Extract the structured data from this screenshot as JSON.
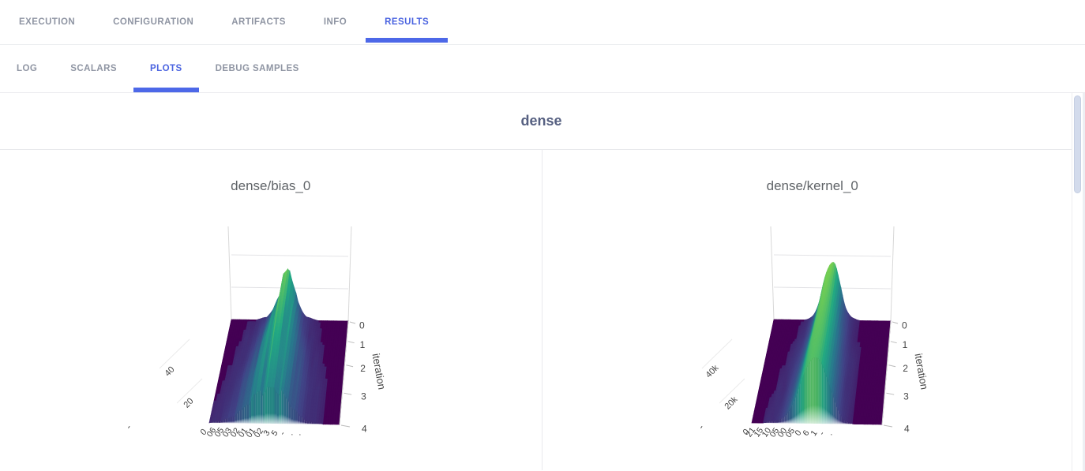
{
  "nav": {
    "tabs": [
      {
        "label": "EXECUTION",
        "active": false
      },
      {
        "label": "CONFIGURATION",
        "active": false
      },
      {
        "label": "ARTIFACTS",
        "active": false
      },
      {
        "label": "INFO",
        "active": false
      },
      {
        "label": "RESULTS",
        "active": true
      }
    ]
  },
  "subnav": {
    "tabs": [
      {
        "label": "LOG",
        "active": false
      },
      {
        "label": "SCALARS",
        "active": false
      },
      {
        "label": "PLOTS",
        "active": true
      },
      {
        "label": "DEBUG SAMPLES",
        "active": false
      }
    ]
  },
  "group_title": "dense",
  "colors": {
    "accent": "#4a63e0",
    "tab_inactive": "#8f95a3",
    "group_title_text": "#566081",
    "plot_title_text": "#606468",
    "divider": "#e8e9ec",
    "scroll_thumb": "#d3dbec",
    "surface_floor": "#440154",
    "surface_peak": "#fde725"
  },
  "chart_data": [
    {
      "type": "surface",
      "title": "dense/bias_0",
      "colorscale": "viridis",
      "surface_style": "jagged",
      "y_axis": {
        "label": "iteration",
        "ticks": [
          "0",
          "1",
          "2",
          "3",
          "4"
        ]
      },
      "z_axis": {
        "ticks": [
          "0",
          "20",
          "40"
        ],
        "range": [
          0,
          45
        ]
      },
      "x_axis": {
        "clipped": true,
        "tick_fragments": [
          "06",
          "05",
          "03",
          "02",
          "01",
          "01",
          "02",
          "3",
          "5",
          "-",
          ".",
          "."
        ]
      },
      "z_display_max": 36,
      "z_values": [
        [
          0,
          0,
          0,
          0,
          0,
          0,
          1,
          2,
          5,
          12,
          24,
          31,
          27,
          12,
          5,
          2,
          1,
          0,
          0,
          0,
          0,
          0,
          0,
          0
        ],
        [
          0,
          0,
          0,
          0,
          1,
          1,
          2,
          5,
          9,
          17,
          26,
          29,
          25,
          16,
          8,
          3,
          1,
          1,
          0,
          0,
          0,
          0,
          0,
          0
        ],
        [
          0,
          0,
          0,
          1,
          1,
          2,
          4,
          8,
          13,
          19,
          23,
          25,
          22,
          17,
          11,
          6,
          3,
          1,
          1,
          0,
          0,
          0,
          0,
          0
        ],
        [
          0,
          0,
          1,
          1,
          2,
          4,
          6,
          10,
          14,
          18,
          20,
          21,
          19,
          16,
          11,
          7,
          4,
          2,
          1,
          1,
          0,
          0,
          0,
          0
        ],
        [
          0,
          1,
          1,
          2,
          3,
          5,
          7,
          10,
          13,
          15,
          16,
          17,
          16,
          14,
          10,
          7,
          4,
          2,
          1,
          1,
          0,
          0,
          0,
          0
        ]
      ]
    },
    {
      "type": "surface",
      "title": "dense/kernel_0",
      "colorscale": "viridis",
      "surface_style": "smooth",
      "y_axis": {
        "label": "iteration",
        "ticks": [
          "0",
          "1",
          "2",
          "3",
          "4"
        ]
      },
      "z_axis": {
        "ticks": [
          "0",
          "20k",
          "40k"
        ],
        "range": [
          0,
          45000
        ]
      },
      "x_axis": {
        "clipped": true,
        "tick_fragments": [
          "21",
          "15",
          "10",
          "05",
          "00",
          "05",
          "0",
          "6",
          "1",
          "-",
          "."
        ]
      },
      "z_values_unit": "thousands",
      "z_display_max": 38,
      "z_values": [
        [
          0,
          0,
          0,
          0,
          0,
          0,
          0,
          1,
          4,
          12,
          26,
          34,
          35,
          23,
          9,
          3,
          1,
          0,
          0,
          0,
          0,
          0,
          0,
          0
        ],
        [
          0,
          0,
          0,
          0,
          0,
          0,
          1,
          2,
          6,
          15,
          27,
          34,
          33,
          23,
          10,
          4,
          1,
          0,
          0,
          0,
          0,
          0,
          0,
          0
        ],
        [
          0,
          0,
          0,
          0,
          0,
          1,
          2,
          4,
          9,
          18,
          28,
          33,
          32,
          24,
          13,
          5,
          2,
          1,
          0,
          0,
          0,
          0,
          0,
          0
        ],
        [
          0,
          0,
          0,
          0,
          1,
          1,
          3,
          6,
          12,
          21,
          29,
          32,
          31,
          24,
          14,
          7,
          2,
          1,
          0,
          0,
          0,
          0,
          0,
          0
        ],
        [
          0,
          0,
          0,
          1,
          1,
          2,
          4,
          8,
          14,
          22,
          28,
          31,
          30,
          24,
          16,
          8,
          3,
          1,
          0,
          0,
          0,
          0,
          0,
          0
        ]
      ]
    }
  ]
}
